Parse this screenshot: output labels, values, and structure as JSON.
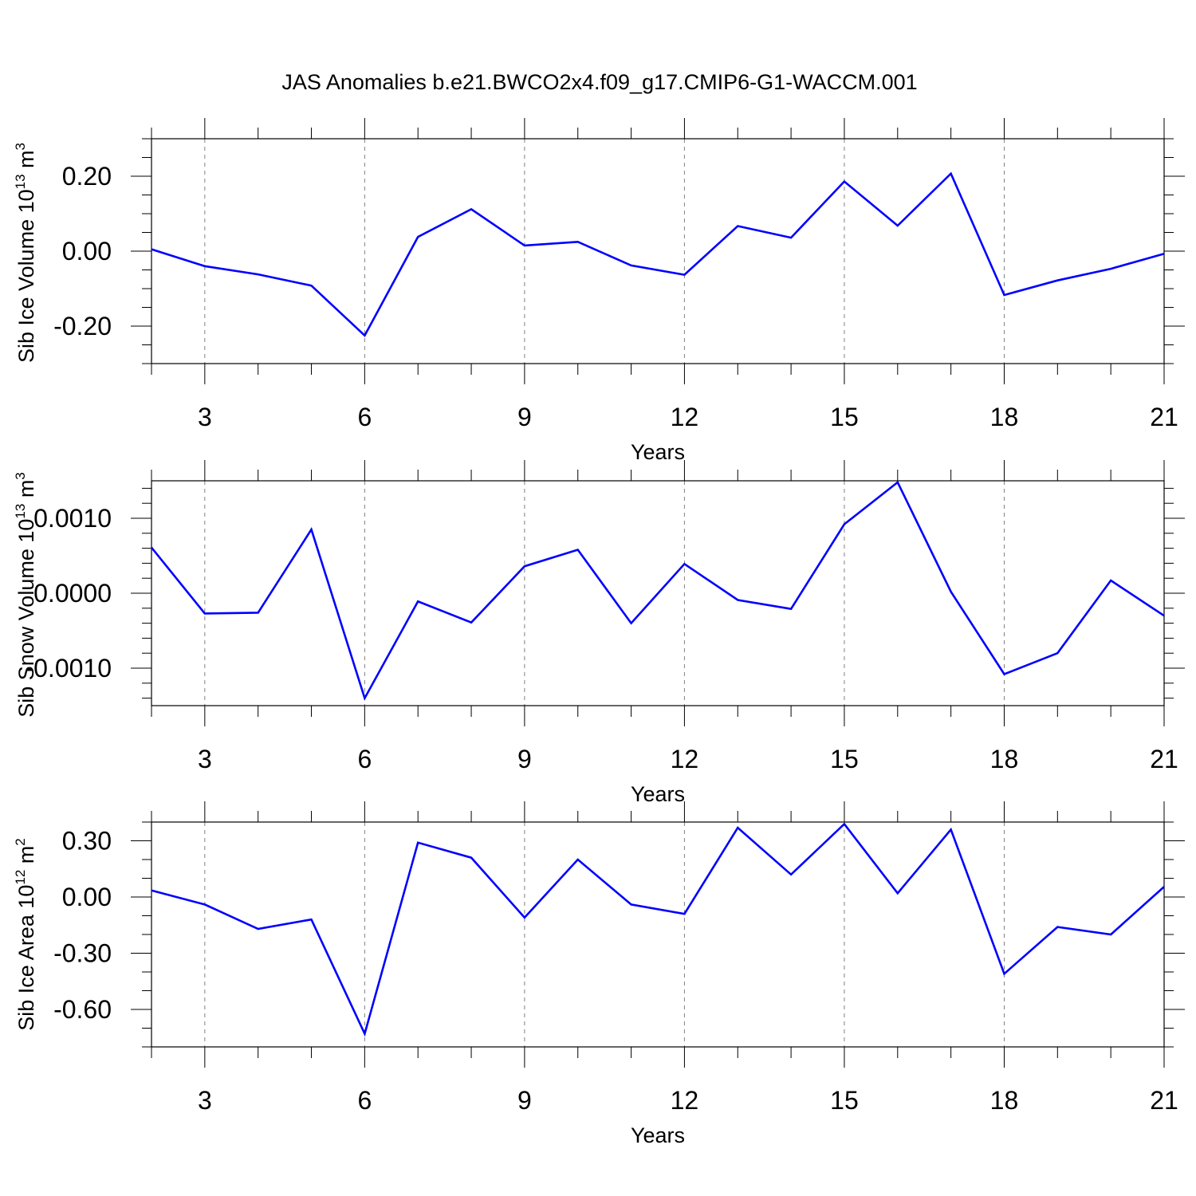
{
  "title": "JAS Anomalies b.e21.BWCO2x4.f09_g17.CMIP6-G1-WACCM.001",
  "colors": {
    "series": "#0000ff",
    "axis": "#000000",
    "grid": "#808080"
  },
  "chart_data": [
    {
      "type": "line",
      "ylabel": {
        "text": "Sib Ice Volume 10",
        "sup": "13",
        "unit": " m",
        "unit_sup": "3"
      },
      "xlabel": "Years",
      "xlim": [
        2,
        21
      ],
      "ylim": [
        -0.3,
        0.3
      ],
      "xticks": [
        3,
        6,
        9,
        12,
        15,
        18,
        21
      ],
      "xtick_labels": [
        "3",
        "6",
        "9",
        "12",
        "15",
        "18",
        "21"
      ],
      "yticks": [
        0.2,
        0.0,
        -0.2
      ],
      "ytick_labels": [
        "0.20",
        "0.00",
        "-0.20"
      ],
      "yminor_step": 0.05,
      "grid": "vertical dashed at major x ticks",
      "x": [
        2,
        3,
        4,
        5,
        6,
        7,
        8,
        9,
        10,
        11,
        12,
        13,
        14,
        15,
        16,
        17,
        18,
        19,
        20,
        21
      ],
      "series": [
        {
          "values": [
            0.005,
            -0.04,
            -0.062,
            -0.092,
            -0.225,
            0.038,
            0.112,
            0.015,
            0.025,
            -0.038,
            -0.063,
            0.067,
            0.036,
            0.186,
            0.068,
            0.207,
            -0.117,
            -0.078,
            -0.047,
            -0.007
          ]
        }
      ]
    },
    {
      "type": "line",
      "ylabel": {
        "text": "Sib Snow Volume 10",
        "sup": "13",
        "unit": " m",
        "unit_sup": "3"
      },
      "xlabel": "Years",
      "xlim": [
        2,
        21
      ],
      "ylim": [
        -0.0015,
        0.0015
      ],
      "xticks": [
        3,
        6,
        9,
        12,
        15,
        18,
        21
      ],
      "xtick_labels": [
        "3",
        "6",
        "9",
        "12",
        "15",
        "18",
        "21"
      ],
      "yticks": [
        0.001,
        0.0,
        -0.001
      ],
      "ytick_labels": [
        "0.0010",
        "0.0000",
        "-0.0010"
      ],
      "yminor_step": 0.0002,
      "grid": "vertical dashed at major x ticks",
      "x": [
        2,
        3,
        4,
        5,
        6,
        7,
        8,
        9,
        10,
        11,
        12,
        13,
        14,
        15,
        16,
        17,
        18,
        19,
        20,
        21
      ],
      "series": [
        {
          "values": [
            0.00061,
            -0.00027,
            -0.00026,
            0.00085,
            -0.0014,
            -0.00011,
            -0.00039,
            0.00036,
            0.00058,
            -0.0004,
            0.00039,
            -9e-05,
            -0.00021,
            0.00092,
            0.00148,
            2e-05,
            -0.00108,
            -0.0008,
            0.00017,
            -0.0003
          ]
        }
      ]
    },
    {
      "type": "line",
      "ylabel": {
        "text": "Sib Ice Area 10",
        "sup": "12",
        "unit": " m",
        "unit_sup": "2"
      },
      "xlabel": "Years",
      "xlim": [
        2,
        21
      ],
      "ylim": [
        -0.8,
        0.4
      ],
      "xticks": [
        3,
        6,
        9,
        12,
        15,
        18,
        21
      ],
      "xtick_labels": [
        "3",
        "6",
        "9",
        "12",
        "15",
        "18",
        "21"
      ],
      "yticks": [
        0.3,
        0.0,
        -0.3,
        -0.6
      ],
      "ytick_labels": [
        "0.30",
        "0.00",
        "-0.30",
        "-0.60"
      ],
      "yminor_step": 0.1,
      "grid": "vertical dashed at major x ticks",
      "x": [
        2,
        3,
        4,
        5,
        6,
        7,
        8,
        9,
        10,
        11,
        12,
        13,
        14,
        15,
        16,
        17,
        18,
        19,
        20,
        21
      ],
      "series": [
        {
          "values": [
            0.035,
            -0.04,
            -0.17,
            -0.12,
            -0.73,
            0.29,
            0.21,
            -0.11,
            0.2,
            -0.04,
            -0.09,
            0.37,
            0.12,
            0.39,
            0.02,
            0.36,
            -0.41,
            -0.16,
            -0.2,
            0.055
          ]
        }
      ]
    }
  ]
}
